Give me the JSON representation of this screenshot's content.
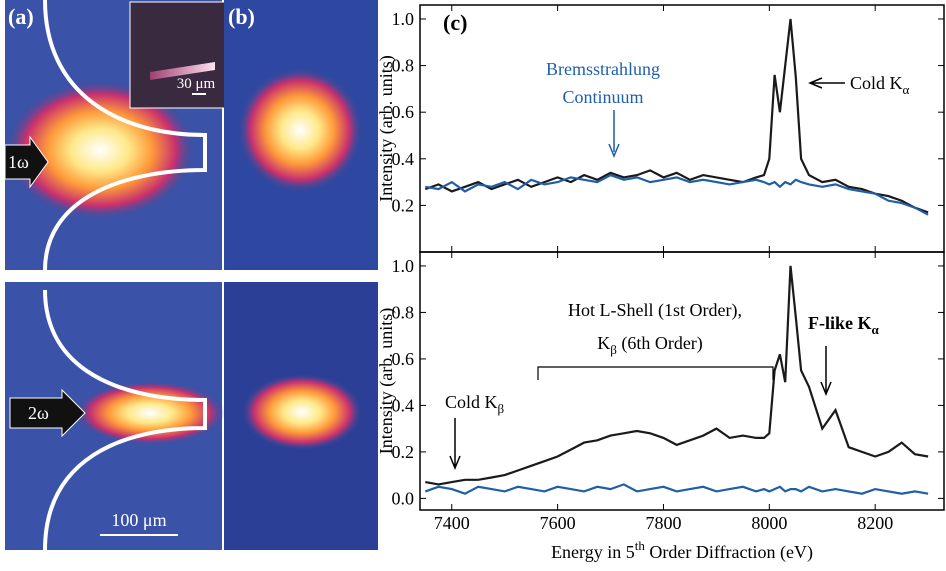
{
  "panels": {
    "a": {
      "label": "(a)",
      "top_arrow": "1ω",
      "bottom_arrow": "2ω",
      "inset_scale": "30 μm",
      "scale": "100 μm"
    },
    "b": {
      "label": "(b)"
    }
  },
  "chart_data": [
    {
      "type": "line",
      "panel_label": "(c)",
      "ylabel": "Intensity (arb. units)",
      "x": [
        7350,
        7375,
        7400,
        7425,
        7450,
        7475,
        7500,
        7525,
        7550,
        7575,
        7600,
        7625,
        7650,
        7675,
        7700,
        7725,
        7750,
        7775,
        7800,
        7825,
        7850,
        7875,
        7900,
        7925,
        7950,
        7975,
        7990,
        8000,
        8010,
        8020,
        8030,
        8040,
        8050,
        8060,
        8075,
        8100,
        8125,
        8150,
        8175,
        8200,
        8225,
        8250,
        8275,
        8300
      ],
      "series": [
        {
          "name": "Bremsstrahlung",
          "color": "#1a1a1a",
          "values": [
            0.27,
            0.29,
            0.26,
            0.28,
            0.3,
            0.27,
            0.29,
            0.31,
            0.28,
            0.3,
            0.32,
            0.3,
            0.33,
            0.31,
            0.34,
            0.32,
            0.33,
            0.35,
            0.32,
            0.34,
            0.31,
            0.33,
            0.32,
            0.31,
            0.3,
            0.32,
            0.33,
            0.4,
            0.76,
            0.6,
            0.8,
            1.0,
            0.75,
            0.4,
            0.33,
            0.3,
            0.31,
            0.28,
            0.27,
            0.25,
            0.24,
            0.22,
            0.19,
            0.17
          ]
        },
        {
          "name": "Continuum",
          "color": "#1f5fa8",
          "values": [
            0.28,
            0.27,
            0.3,
            0.26,
            0.29,
            0.28,
            0.3,
            0.27,
            0.31,
            0.29,
            0.3,
            0.32,
            0.31,
            0.3,
            0.33,
            0.31,
            0.32,
            0.3,
            0.31,
            0.32,
            0.3,
            0.31,
            0.3,
            0.29,
            0.3,
            0.31,
            0.3,
            0.29,
            0.3,
            0.28,
            0.3,
            0.29,
            0.31,
            0.3,
            0.29,
            0.28,
            0.29,
            0.27,
            0.26,
            0.25,
            0.22,
            0.21,
            0.19,
            0.16
          ]
        }
      ],
      "xlim": [
        7340,
        8330
      ],
      "ylim": [
        0,
        1.06
      ],
      "yticks": [
        0.2,
        0.4,
        0.6,
        0.8,
        {
          "value": 1,
          "label": "1.0"
        }
      ],
      "annotations": [
        {
          "text": "Cold K",
          "sub": "α"
        }
      ]
    },
    {
      "type": "line",
      "ylabel": "Intensity (arb. units)",
      "xlabel": {
        "text": "Energy in 5",
        "sup": "th",
        "after": " Order Diffraction (eV)"
      },
      "x": [
        7350,
        7375,
        7400,
        7425,
        7450,
        7475,
        7500,
        7525,
        7550,
        7575,
        7600,
        7625,
        7650,
        7675,
        7700,
        7725,
        7750,
        7775,
        7800,
        7825,
        7850,
        7875,
        7900,
        7925,
        7950,
        7975,
        7990,
        8000,
        8010,
        8020,
        8030,
        8040,
        8050,
        8060,
        8075,
        8100,
        8125,
        8150,
        8175,
        8200,
        8225,
        8250,
        8275,
        8300
      ],
      "series": [
        {
          "color": "#1a1a1a",
          "values": [
            0.07,
            0.06,
            0.07,
            0.08,
            0.08,
            0.09,
            0.1,
            0.12,
            0.14,
            0.16,
            0.18,
            0.21,
            0.24,
            0.25,
            0.27,
            0.28,
            0.29,
            0.28,
            0.26,
            0.23,
            0.25,
            0.27,
            0.3,
            0.26,
            0.27,
            0.26,
            0.26,
            0.28,
            0.55,
            0.62,
            0.5,
            1.0,
            0.78,
            0.55,
            0.48,
            0.3,
            0.38,
            0.22,
            0.2,
            0.18,
            0.2,
            0.24,
            0.19,
            0.18
          ]
        },
        {
          "color": "#1f5fa8",
          "values": [
            0.03,
            0.05,
            0.04,
            0.02,
            0.05,
            0.04,
            0.03,
            0.05,
            0.04,
            0.03,
            0.05,
            0.04,
            0.03,
            0.05,
            0.04,
            0.06,
            0.03,
            0.04,
            0.05,
            0.03,
            0.04,
            0.05,
            0.03,
            0.04,
            0.05,
            0.03,
            0.04,
            0.03,
            0.04,
            0.05,
            0.03,
            0.04,
            0.04,
            0.03,
            0.05,
            0.03,
            0.04,
            0.03,
            0.02,
            0.04,
            0.03,
            0.02,
            0.03,
            0.02
          ]
        }
      ],
      "xlim": [
        7340,
        8330
      ],
      "ylim": [
        -0.05,
        1.06
      ],
      "xticks": [
        7400,
        7600,
        7800,
        8000,
        8200
      ],
      "yticks": [
        {
          "value": 0,
          "label": "0.0"
        },
        0.2,
        0.4,
        0.6,
        0.8,
        {
          "value": 1,
          "label": "1.0"
        }
      ],
      "annotations": [
        {
          "text": "Hot L-Shell (1st Order),"
        },
        {
          "text": "K",
          "sub": "β",
          "after": " (6th Order)"
        },
        {
          "text": "Cold K",
          "sub": "β"
        },
        {
          "text": "F-like K",
          "sub": "α"
        }
      ]
    }
  ]
}
